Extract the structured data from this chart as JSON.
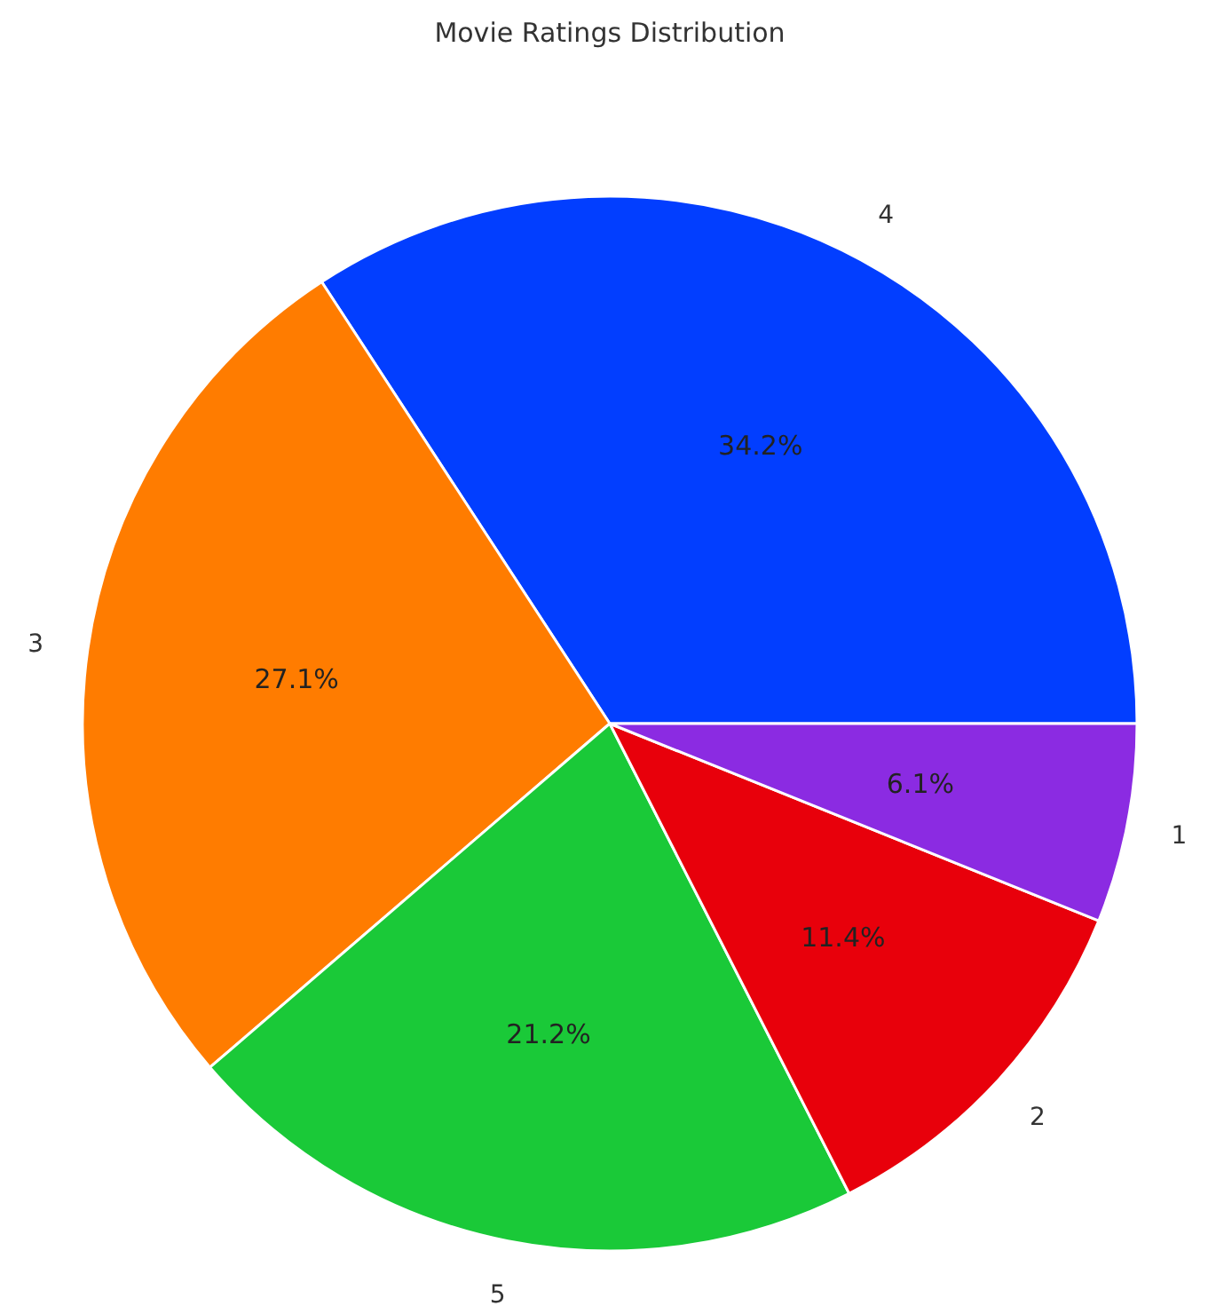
{
  "chart_data": {
    "type": "pie",
    "title": "Movie Ratings Distribution",
    "categories": [
      "4",
      "3",
      "5",
      "2",
      "1"
    ],
    "values": [
      34.2,
      27.1,
      21.2,
      11.4,
      6.1
    ],
    "colors": [
      "#023eff",
      "#ff7c00",
      "#1ac938",
      "#e8000b",
      "#8b2be2"
    ],
    "value_labels": [
      "34.2%",
      "27.1%",
      "21.2%",
      "11.4%",
      "6.1%"
    ]
  }
}
